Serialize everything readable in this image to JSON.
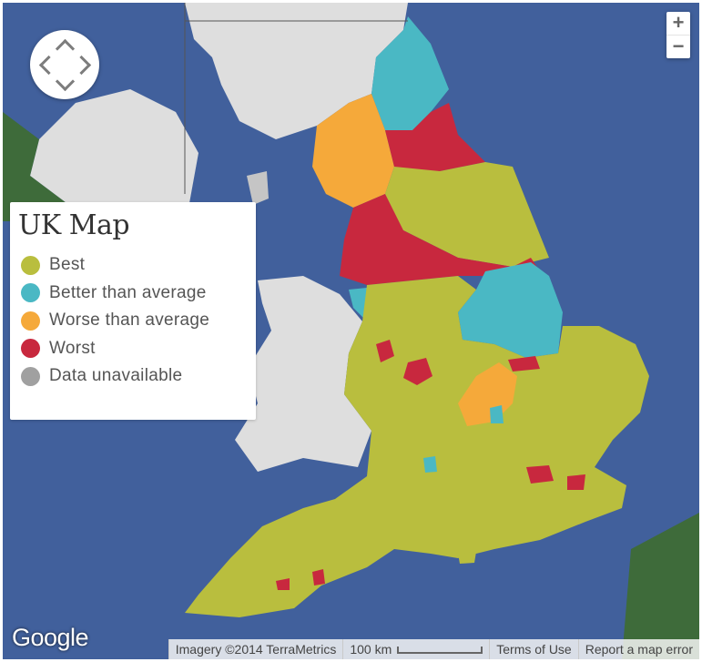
{
  "legend": {
    "title": "UK Map",
    "items": [
      {
        "label": "Best",
        "color": "#b9be3e"
      },
      {
        "label": "Better than average",
        "color": "#4ab8c4"
      },
      {
        "label": "Worse than average",
        "color": "#f5a93a"
      },
      {
        "label": "Worst",
        "color": "#c8283e"
      },
      {
        "label": "Data unavailable",
        "color": "#a0a0a0"
      }
    ]
  },
  "map_controls": {
    "zoom_in": "+",
    "zoom_out": "−"
  },
  "footer": {
    "logo": "Google",
    "imagery": "Imagery ©2014 TerraMetrics",
    "scale": "100 km",
    "terms": "Terms of Use",
    "report": "Report a map error"
  }
}
